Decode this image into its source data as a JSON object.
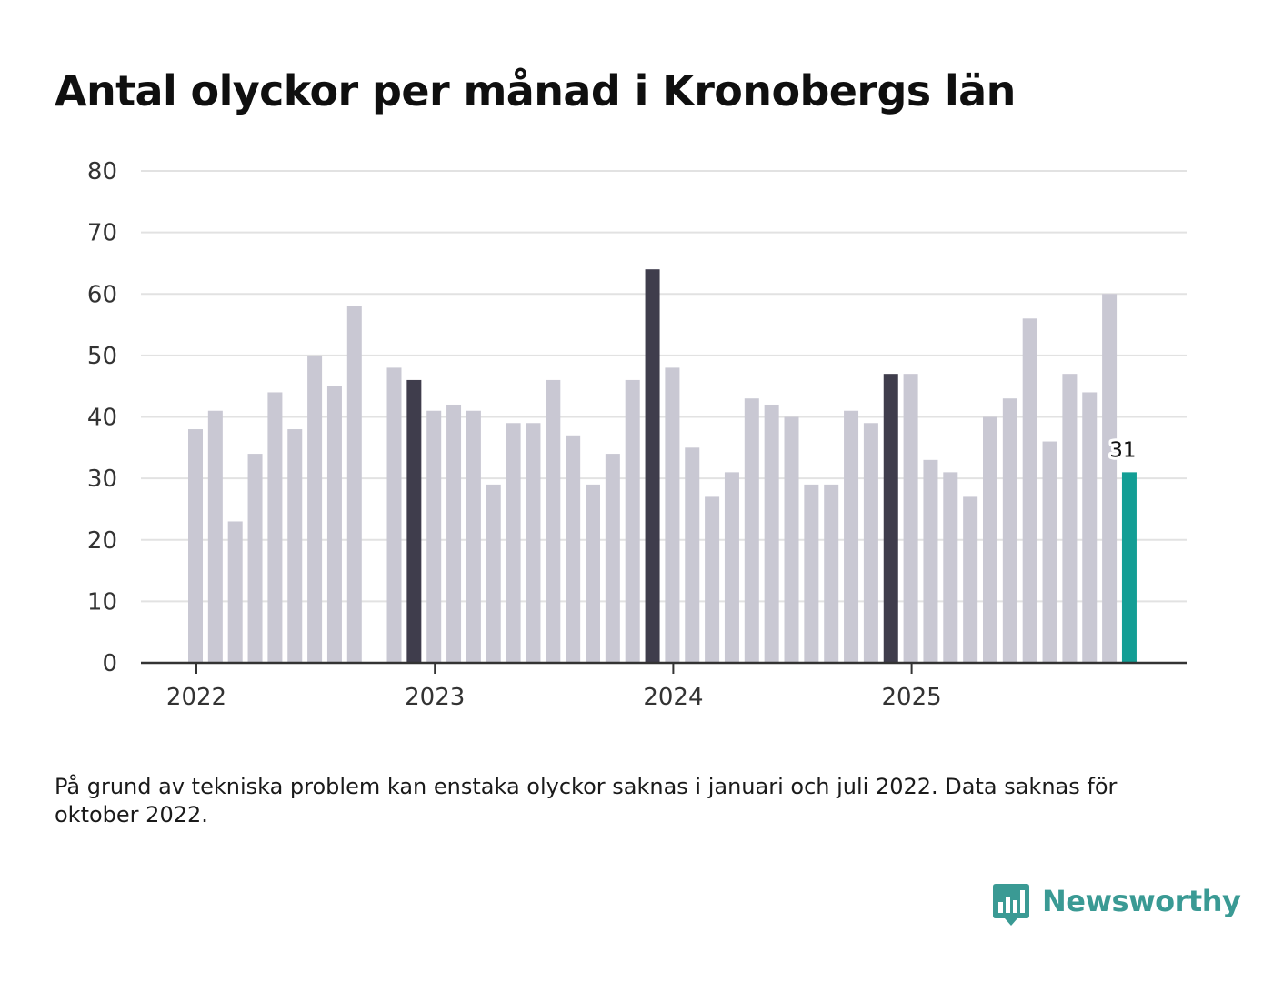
{
  "title": "Antal olyckor per månad i Kronobergs län",
  "footnote": "På grund av tekniska problem kan enstaka olyckor saknas i januari och juli 2022. Data saknas för oktober 2022.",
  "brand": {
    "name": "Newsworthy",
    "color": "#3a9a94",
    "icon": "bar-chart-speech-bubble-icon"
  },
  "colors": {
    "bar_default": "#c9c8d3",
    "bar_december": "#3f3d4c",
    "bar_latest": "#139e95",
    "gridline": "#e2e2e2",
    "axis": "#333333"
  },
  "chart_data": {
    "type": "bar",
    "title": "Antal olyckor per månad i Kronobergs län",
    "xlabel": "",
    "ylabel": "",
    "ylim": [
      0,
      80
    ],
    "yticks": [
      0,
      10,
      20,
      30,
      40,
      50,
      60,
      70,
      80
    ],
    "xticks": [
      {
        "label": "2022",
        "month_index": 0
      },
      {
        "label": "2023",
        "month_index": 12
      },
      {
        "label": "2024",
        "month_index": 24
      },
      {
        "label": "2025",
        "month_index": 36
      }
    ],
    "grid": true,
    "legend": "none",
    "months": [
      "2022-01",
      "2022-02",
      "2022-03",
      "2022-04",
      "2022-05",
      "2022-06",
      "2022-07",
      "2022-08",
      "2022-09",
      "2022-10",
      "2022-11",
      "2022-12",
      "2023-01",
      "2023-02",
      "2023-03",
      "2023-04",
      "2023-05",
      "2023-06",
      "2023-07",
      "2023-08",
      "2023-09",
      "2023-10",
      "2023-11",
      "2023-12",
      "2024-01",
      "2024-02",
      "2024-03",
      "2024-04",
      "2024-05",
      "2024-06",
      "2024-07",
      "2024-08",
      "2024-09",
      "2024-10",
      "2024-11",
      "2024-12",
      "2025-01",
      "2025-02",
      "2025-03",
      "2025-04",
      "2025-05",
      "2025-06",
      "2025-07",
      "2025-08",
      "2025-09",
      "2025-10",
      "2025-11",
      "2025-12"
    ],
    "values": [
      38,
      41,
      23,
      34,
      44,
      38,
      50,
      45,
      58,
      null,
      48,
      46,
      41,
      42,
      41,
      29,
      39,
      39,
      46,
      37,
      29,
      34,
      46,
      64,
      48,
      35,
      27,
      31,
      43,
      42,
      40,
      29,
      29,
      41,
      39,
      47,
      47,
      33,
      31,
      27,
      40,
      43,
      56,
      36,
      47,
      44,
      60,
      31
    ],
    "highlight": {
      "december_indices": [
        11,
        23,
        35
      ],
      "latest_index": 47
    },
    "annotations": [
      {
        "month_index": 47,
        "text": "31"
      }
    ]
  }
}
